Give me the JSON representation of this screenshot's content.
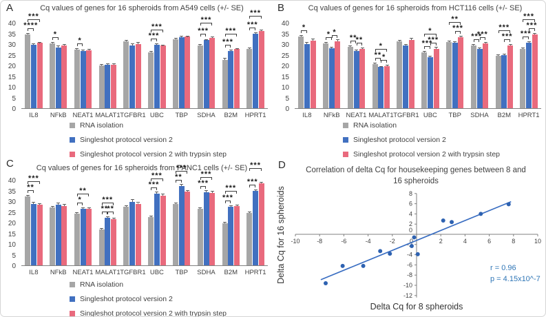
{
  "panel_letters": {
    "A": "A",
    "B": "B",
    "C": "C",
    "D": "D"
  },
  "chart_data": [
    {
      "panel": "A",
      "type": "bar",
      "title": "Cq values of genes for 16 spheroids from A549 cells (+/- SE)",
      "ylabel": "Cq",
      "ylim": [
        0,
        40
      ],
      "ytick_step": 5,
      "legend_position": "bottom-left",
      "categories": [
        "IL8",
        "NFkB",
        "NEAT1",
        "MALAT1",
        "TGFBR1",
        "UBC",
        "TBP",
        "SDHA",
        "B2M",
        "HPRT1"
      ],
      "series": [
        {
          "name": "RNA isolation",
          "color": "#a6a6a6",
          "values": [
            34.5,
            30.2,
            27.3,
            20.0,
            31.2,
            26.2,
            32.4,
            29.4,
            22.7,
            27.7
          ],
          "se": [
            0.4,
            0.3,
            0.3,
            0.2,
            0.3,
            0.3,
            0.3,
            0.3,
            0.4,
            0.4
          ]
        },
        {
          "name": "Singleshot protocol version 2",
          "color": "#4170c0",
          "values": [
            29.8,
            28.5,
            26.8,
            20.3,
            29.5,
            29.7,
            33.3,
            31.8,
            26.8,
            34.7
          ],
          "se": [
            0.3,
            0.4,
            0.3,
            0.2,
            0.5,
            0.3,
            0.4,
            0.3,
            0.3,
            0.4
          ]
        },
        {
          "name": "Singleshot protocol version 2 with trypsin step",
          "color": "#e96a7d",
          "values": [
            30.5,
            29.4,
            27.0,
            20.3,
            30.1,
            29.2,
            33.4,
            32.8,
            27.6,
            36.0
          ],
          "se": [
            0.3,
            0.4,
            0.3,
            0.2,
            0.5,
            0.3,
            0.3,
            0.3,
            0.2,
            0.5
          ]
        }
      ],
      "sig": [
        {
          "gene": "IL8",
          "a": 0,
          "b": 1,
          "label": "****",
          "level": 0
        },
        {
          "gene": "IL8",
          "a": 0,
          "b": 2,
          "label": "***",
          "level": 1
        },
        {
          "gene": "NFkB",
          "a": 0,
          "b": 1,
          "label": "*",
          "level": 0
        },
        {
          "gene": "NEAT1",
          "a": 0,
          "b": 1,
          "label": "*",
          "level": 0
        },
        {
          "gene": "UBC",
          "a": 0,
          "b": 1,
          "label": "***",
          "level": 0
        },
        {
          "gene": "UBC",
          "a": 0,
          "b": 2,
          "label": "***",
          "level": 1
        },
        {
          "gene": "SDHA",
          "a": 0,
          "b": 1,
          "label": "***",
          "level": 0
        },
        {
          "gene": "SDHA",
          "a": 0,
          "b": 2,
          "label": "***",
          "level": 1
        },
        {
          "gene": "B2M",
          "a": 0,
          "b": 1,
          "label": "***",
          "level": 0
        },
        {
          "gene": "B2M",
          "a": 0,
          "b": 2,
          "label": "***",
          "level": 1
        },
        {
          "gene": "HPRT1",
          "a": 0,
          "b": 1,
          "label": "***",
          "level": 0
        },
        {
          "gene": "HPRT1",
          "a": 0,
          "b": 2,
          "label": "***",
          "level": 1
        }
      ]
    },
    {
      "panel": "B",
      "type": "bar",
      "title": "Cq values of genes for 16 spheroids from HCT116 cells (+/- SE)",
      "ylabel": "Cq",
      "ylim": [
        0,
        40
      ],
      "ytick_step": 5,
      "legend_position": "bottom-left",
      "categories": [
        "IL8",
        "NFkB",
        "NEAT1",
        "MALAT1",
        "TGFBR1",
        "UBC",
        "TBP",
        "SDHA",
        "B2M",
        "HPRT1"
      ],
      "series": [
        {
          "name": "RNA isolation",
          "color": "#a6a6a6",
          "values": [
            33.7,
            30.4,
            28.6,
            20.7,
            31.3,
            26.1,
            31.1,
            29.5,
            24.4,
            27.7
          ],
          "se": [
            0.3,
            0.3,
            0.3,
            0.3,
            0.3,
            0.3,
            0.3,
            0.3,
            0.3,
            0.3
          ]
        },
        {
          "name": "Singleshot protocol version 2",
          "color": "#4170c0",
          "values": [
            30.0,
            28.2,
            26.7,
            19.2,
            29.2,
            23.8,
            30.7,
            27.8,
            24.7,
            30.5
          ],
          "se": [
            0.8,
            0.3,
            0.4,
            0.3,
            0.5,
            0.3,
            0.3,
            0.3,
            0.4,
            0.4
          ]
        },
        {
          "name": "Singleshot protocol version 2 with trypsin step",
          "color": "#e96a7d",
          "values": [
            31.7,
            31.3,
            27.8,
            19.8,
            32.1,
            27.8,
            33.3,
            30.4,
            29.3,
            34.6
          ],
          "se": [
            0.5,
            0.5,
            0.3,
            0.3,
            0.6,
            0.5,
            0.3,
            0.4,
            0.4,
            0.3
          ]
        }
      ],
      "sig": [
        {
          "gene": "IL8",
          "a": 0,
          "b": 1,
          "label": "*",
          "level": 0
        },
        {
          "gene": "NFkB",
          "a": 0,
          "b": 1,
          "label": "*",
          "level": 0
        },
        {
          "gene": "NFkB",
          "a": 1,
          "b": 2,
          "label": "*",
          "level": 0
        },
        {
          "gene": "NEAT1",
          "a": 0,
          "b": 1,
          "label": "**",
          "level": 0
        },
        {
          "gene": "NEAT1",
          "a": 1,
          "b": 2,
          "label": "**",
          "level": 0
        },
        {
          "gene": "MALAT1",
          "a": 0,
          "b": 1,
          "label": "**",
          "level": 0
        },
        {
          "gene": "MALAT1",
          "a": 1,
          "b": 2,
          "label": "*",
          "level": 0
        },
        {
          "gene": "MALAT1",
          "a": 0,
          "b": 2,
          "label": "*",
          "level": 1
        },
        {
          "gene": "UBC",
          "a": 0,
          "b": 1,
          "label": "***",
          "level": 0
        },
        {
          "gene": "UBC",
          "a": 1,
          "b": 2,
          "label": "***",
          "level": 0
        },
        {
          "gene": "UBC",
          "a": 0,
          "b": 2,
          "label": "*",
          "level": 1
        },
        {
          "gene": "TBP",
          "a": 1,
          "b": 2,
          "label": "***",
          "level": 0
        },
        {
          "gene": "TBP",
          "a": 0,
          "b": 2,
          "label": "**",
          "level": 1
        },
        {
          "gene": "SDHA",
          "a": 0,
          "b": 1,
          "label": "***",
          "level": 0
        },
        {
          "gene": "SDHA",
          "a": 1,
          "b": 2,
          "label": "***",
          "level": 0
        },
        {
          "gene": "B2M",
          "a": 1,
          "b": 2,
          "label": "***",
          "level": 0
        },
        {
          "gene": "B2M",
          "a": 0,
          "b": 2,
          "label": "***",
          "level": 1
        },
        {
          "gene": "HPRT1",
          "a": 0,
          "b": 1,
          "label": "***",
          "level": 0
        },
        {
          "gene": "HPRT1",
          "a": 1,
          "b": 2,
          "label": "***",
          "level": 0
        },
        {
          "gene": "HPRT1",
          "a": 0,
          "b": 2,
          "label": "***",
          "level": 1
        }
      ]
    },
    {
      "panel": "C",
      "type": "bar",
      "title": "Cq values of genes for 16 spheroids from PANC1 cells (+/- SE)",
      "ylabel": "Cq",
      "ylim": [
        0,
        40
      ],
      "ytick_step": 5,
      "legend_position": "bottom-left",
      "categories": [
        "IL8",
        "NFkB",
        "NEAT1",
        "MALAT1",
        "TGFBR1",
        "UBC",
        "TBP",
        "SDHA",
        "B2M",
        "HPRT1"
      ],
      "series": [
        {
          "name": "RNA isolation",
          "color": "#a6a6a6",
          "values": [
            32.3,
            27.0,
            24.3,
            16.8,
            27.5,
            22.6,
            28.6,
            26.3,
            19.6,
            24.4
          ],
          "se": [
            0.4,
            0.4,
            0.3,
            0.3,
            0.4,
            0.4,
            0.5,
            0.4,
            0.4,
            0.4
          ]
        },
        {
          "name": "Singleshot protocol version 2",
          "color": "#4170c0",
          "values": [
            28.8,
            28.3,
            26.4,
            22.3,
            29.7,
            33.6,
            37.2,
            34.3,
            27.5,
            34.8
          ],
          "se": [
            0.6,
            0.8,
            0.4,
            0.3,
            0.8,
            0.7,
            0.5,
            0.5,
            0.4,
            0.5
          ]
        },
        {
          "name": "Singleshot protocol version 2 with trypsin step",
          "color": "#e96a7d",
          "values": [
            28.4,
            27.8,
            26.5,
            21.5,
            28.8,
            32.6,
            34.6,
            34.0,
            27.8,
            38.5
          ],
          "se": [
            0.3,
            0.5,
            0.4,
            0.3,
            0.4,
            0.5,
            0.4,
            0.4,
            0.3,
            0.3
          ]
        }
      ],
      "sig": [
        {
          "gene": "IL8",
          "a": 0,
          "b": 1,
          "label": "**",
          "level": 0
        },
        {
          "gene": "IL8",
          "a": 0,
          "b": 2,
          "label": "***",
          "level": 1
        },
        {
          "gene": "NEAT1",
          "a": 0,
          "b": 1,
          "label": "*",
          "level": 0
        },
        {
          "gene": "NEAT1",
          "a": 0,
          "b": 2,
          "label": "**",
          "level": 1
        },
        {
          "gene": "MALAT1",
          "a": 0,
          "b": 1,
          "label": "**",
          "level": 0
        },
        {
          "gene": "MALAT1",
          "a": 1,
          "b": 2,
          "label": "**",
          "level": 0
        },
        {
          "gene": "MALAT1",
          "a": 0,
          "b": 2,
          "label": "***",
          "level": 1
        },
        {
          "gene": "UBC",
          "a": 0,
          "b": 1,
          "label": "***",
          "level": 0
        },
        {
          "gene": "UBC",
          "a": 0,
          "b": 2,
          "label": "***",
          "level": 1
        },
        {
          "gene": "TBP",
          "a": 0,
          "b": 1,
          "label": "**",
          "level": 0
        },
        {
          "gene": "TBP",
          "a": 0,
          "b": 2,
          "label": "***",
          "level": 1
        },
        {
          "gene": "SDHA",
          "a": 0,
          "b": 1,
          "label": "***",
          "level": 0
        },
        {
          "gene": "SDHA",
          "a": 0,
          "b": 2,
          "label": "***",
          "level": 1
        },
        {
          "gene": "B2M",
          "a": 0,
          "b": 1,
          "label": "***",
          "level": 0
        },
        {
          "gene": "B2M",
          "a": 0,
          "b": 2,
          "label": "***",
          "level": 1
        },
        {
          "gene": "HPRT1",
          "a": 0,
          "b": 1,
          "label": "***",
          "level": 0
        },
        {
          "gene": "HPRT1",
          "a": 0,
          "b": 2,
          "label": "***",
          "level": 1
        }
      ]
    },
    {
      "panel": "D",
      "type": "scatter",
      "title": "Correlation of delta Cq for housekeeping genes between 8 and 16 spheroids",
      "xlabel": "Delta Cq for 8 spheroids",
      "ylabel": "Delta Cq for 16 spheroids",
      "xlim": [
        -10,
        10
      ],
      "ylim": [
        -12,
        8
      ],
      "tick_step": 2,
      "points": [
        [
          -7.5,
          -9.6
        ],
        [
          -6.1,
          -6.2
        ],
        [
          -4.4,
          -6.2
        ],
        [
          -3.0,
          -3.3
        ],
        [
          -2.2,
          -3.8
        ],
        [
          -0.4,
          -2.3
        ],
        [
          -0.2,
          -0.6
        ],
        [
          0.1,
          -3.9
        ],
        [
          2.2,
          2.7
        ],
        [
          2.9,
          2.4
        ],
        [
          5.3,
          4.0
        ],
        [
          7.6,
          5.9
        ]
      ],
      "trendline": {
        "x1": -7.9,
        "y1": -8.9,
        "x2": 7.8,
        "y2": 6.4
      },
      "trendline_color": "#3a6ec2",
      "point_color": "#2e62b1",
      "annotation": {
        "r_label": "r = 0.96",
        "p_label": "p = 4.15x10^-7",
        "color": "#2e75b6"
      }
    }
  ]
}
